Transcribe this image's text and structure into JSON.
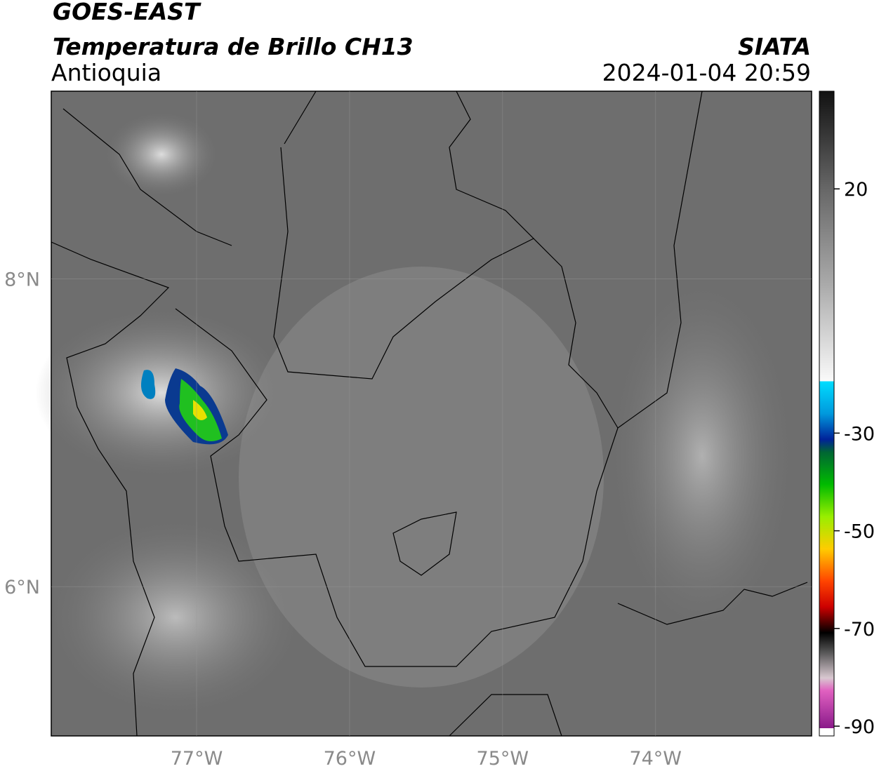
{
  "header": {
    "title": "GOES-EAST",
    "subtitle": "Temperatura de Brillo CH13",
    "region": "Antioquia",
    "source": "SIATA",
    "datetime": "2024-01-04 20:59"
  },
  "map": {
    "lon_range": [
      -77.95,
      -72.98
    ],
    "lat_range": [
      5.03,
      9.22
    ],
    "lon_ticks": [
      {
        "value": -77,
        "label": "77°W"
      },
      {
        "value": -76,
        "label": "76°W"
      },
      {
        "value": -75,
        "label": "75°W"
      },
      {
        "value": -74,
        "label": "74°W"
      }
    ],
    "lat_ticks": [
      {
        "value": 8,
        "label": "8°N"
      },
      {
        "value": 6,
        "label": "6°N"
      }
    ]
  },
  "colorbar": {
    "range": [
      -92,
      40
    ],
    "ticks": [
      20,
      -30,
      -50,
      -70,
      -90
    ]
  }
}
